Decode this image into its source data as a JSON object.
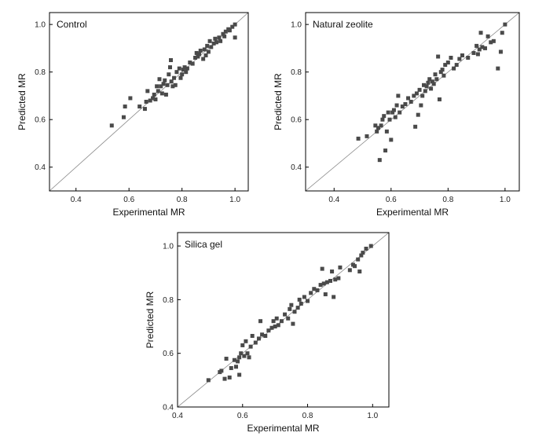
{
  "chart_data": [
    {
      "type": "scatter",
      "title": "Control",
      "xlabel": "Experimental MR",
      "ylabel": "Predicted MR",
      "xlim": [
        0.3,
        1.05
      ],
      "ylim": [
        0.3,
        1.05
      ],
      "xticks": [
        "0.4",
        "0.6",
        "0.8",
        "1.0"
      ],
      "yticks": [
        "0.4",
        "0.6",
        "0.8",
        "1.0"
      ],
      "reference_line": "y = x",
      "marker_color": "#4a4a4a",
      "points": [
        [
          0.535,
          0.575
        ],
        [
          0.58,
          0.61
        ],
        [
          0.585,
          0.655
        ],
        [
          0.605,
          0.69
        ],
        [
          0.64,
          0.655
        ],
        [
          0.66,
          0.645
        ],
        [
          0.665,
          0.675
        ],
        [
          0.67,
          0.72
        ],
        [
          0.68,
          0.68
        ],
        [
          0.69,
          0.69
        ],
        [
          0.695,
          0.705
        ],
        [
          0.7,
          0.685
        ],
        [
          0.705,
          0.74
        ],
        [
          0.71,
          0.72
        ],
        [
          0.715,
          0.77
        ],
        [
          0.72,
          0.74
        ],
        [
          0.725,
          0.71
        ],
        [
          0.73,
          0.75
        ],
        [
          0.735,
          0.765
        ],
        [
          0.74,
          0.705
        ],
        [
          0.745,
          0.745
        ],
        [
          0.75,
          0.79
        ],
        [
          0.755,
          0.82
        ],
        [
          0.758,
          0.85
        ],
        [
          0.76,
          0.76
        ],
        [
          0.765,
          0.74
        ],
        [
          0.77,
          0.775
        ],
        [
          0.775,
          0.745
        ],
        [
          0.78,
          0.8
        ],
        [
          0.79,
          0.815
        ],
        [
          0.795,
          0.775
        ],
        [
          0.8,
          0.79
        ],
        [
          0.805,
          0.81
        ],
        [
          0.81,
          0.82
        ],
        [
          0.815,
          0.8
        ],
        [
          0.82,
          0.815
        ],
        [
          0.83,
          0.84
        ],
        [
          0.84,
          0.835
        ],
        [
          0.85,
          0.86
        ],
        [
          0.855,
          0.88
        ],
        [
          0.86,
          0.865
        ],
        [
          0.865,
          0.875
        ],
        [
          0.87,
          0.89
        ],
        [
          0.88,
          0.855
        ],
        [
          0.885,
          0.895
        ],
        [
          0.89,
          0.87
        ],
        [
          0.895,
          0.91
        ],
        [
          0.9,
          0.885
        ],
        [
          0.905,
          0.93
        ],
        [
          0.91,
          0.905
        ],
        [
          0.92,
          0.92
        ],
        [
          0.925,
          0.94
        ],
        [
          0.93,
          0.925
        ],
        [
          0.94,
          0.945
        ],
        [
          0.945,
          0.93
        ],
        [
          0.955,
          0.96
        ],
        [
          0.96,
          0.95
        ],
        [
          0.965,
          0.97
        ],
        [
          0.975,
          0.98
        ],
        [
          0.98,
          0.975
        ],
        [
          0.99,
          0.99
        ],
        [
          1.0,
          1.0
        ],
        [
          1.0,
          0.945
        ]
      ]
    },
    {
      "type": "scatter",
      "title": "Natural zeolite",
      "xlabel": "Experimental MR",
      "ylabel": "Predicted MR",
      "xlim": [
        0.3,
        1.05
      ],
      "ylim": [
        0.3,
        1.05
      ],
      "xticks": [
        "0.4",
        "0.6",
        "0.8",
        "1.0"
      ],
      "yticks": [
        "0.4",
        "0.6",
        "0.8",
        "1.0"
      ],
      "reference_line": "y = x",
      "marker_color": "#4a4a4a",
      "points": [
        [
          0.485,
          0.52
        ],
        [
          0.515,
          0.53
        ],
        [
          0.545,
          0.575
        ],
        [
          0.55,
          0.55
        ],
        [
          0.555,
          0.565
        ],
        [
          0.56,
          0.43
        ],
        [
          0.565,
          0.575
        ],
        [
          0.57,
          0.6
        ],
        [
          0.575,
          0.615
        ],
        [
          0.58,
          0.47
        ],
        [
          0.585,
          0.55
        ],
        [
          0.59,
          0.63
        ],
        [
          0.595,
          0.6
        ],
        [
          0.6,
          0.515
        ],
        [
          0.605,
          0.63
        ],
        [
          0.61,
          0.64
        ],
        [
          0.615,
          0.61
        ],
        [
          0.62,
          0.66
        ],
        [
          0.625,
          0.7
        ],
        [
          0.63,
          0.63
        ],
        [
          0.64,
          0.655
        ],
        [
          0.65,
          0.665
        ],
        [
          0.66,
          0.69
        ],
        [
          0.67,
          0.675
        ],
        [
          0.68,
          0.7
        ],
        [
          0.685,
          0.57
        ],
        [
          0.69,
          0.71
        ],
        [
          0.695,
          0.62
        ],
        [
          0.7,
          0.725
        ],
        [
          0.705,
          0.66
        ],
        [
          0.71,
          0.7
        ],
        [
          0.715,
          0.745
        ],
        [
          0.72,
          0.72
        ],
        [
          0.725,
          0.74
        ],
        [
          0.73,
          0.755
        ],
        [
          0.735,
          0.77
        ],
        [
          0.74,
          0.73
        ],
        [
          0.745,
          0.76
        ],
        [
          0.75,
          0.75
        ],
        [
          0.755,
          0.79
        ],
        [
          0.76,
          0.77
        ],
        [
          0.765,
          0.865
        ],
        [
          0.77,
          0.685
        ],
        [
          0.775,
          0.8
        ],
        [
          0.78,
          0.81
        ],
        [
          0.785,
          0.785
        ],
        [
          0.79,
          0.83
        ],
        [
          0.8,
          0.84
        ],
        [
          0.81,
          0.86
        ],
        [
          0.82,
          0.815
        ],
        [
          0.83,
          0.83
        ],
        [
          0.84,
          0.855
        ],
        [
          0.85,
          0.87
        ],
        [
          0.87,
          0.86
        ],
        [
          0.89,
          0.88
        ],
        [
          0.9,
          0.91
        ],
        [
          0.905,
          0.875
        ],
        [
          0.91,
          0.895
        ],
        [
          0.915,
          0.965
        ],
        [
          0.92,
          0.905
        ],
        [
          0.93,
          0.9
        ],
        [
          0.94,
          0.95
        ],
        [
          0.95,
          0.925
        ],
        [
          0.96,
          0.93
        ],
        [
          0.975,
          0.815
        ],
        [
          0.985,
          0.885
        ],
        [
          0.99,
          0.965
        ],
        [
          1.0,
          1.0
        ]
      ]
    },
    {
      "type": "scatter",
      "title": "Silica gel",
      "xlabel": "Experimental MR",
      "ylabel": "Predicted MR",
      "xlim": [
        0.4,
        1.05
      ],
      "ylim": [
        0.4,
        1.05
      ],
      "xticks": [
        "0.4",
        "0.6",
        "0.8",
        "1.0"
      ],
      "yticks": [
        "0.4",
        "0.6",
        "0.8",
        "1.0"
      ],
      "reference_line": "y = x",
      "marker_color": "#4a4a4a",
      "points": [
        [
          0.495,
          0.5
        ],
        [
          0.53,
          0.53
        ],
        [
          0.535,
          0.535
        ],
        [
          0.545,
          0.505
        ],
        [
          0.55,
          0.58
        ],
        [
          0.56,
          0.51
        ],
        [
          0.565,
          0.545
        ],
        [
          0.575,
          0.575
        ],
        [
          0.58,
          0.55
        ],
        [
          0.585,
          0.57
        ],
        [
          0.59,
          0.585
        ],
        [
          0.59,
          0.52
        ],
        [
          0.595,
          0.6
        ],
        [
          0.6,
          0.63
        ],
        [
          0.605,
          0.59
        ],
        [
          0.61,
          0.645
        ],
        [
          0.615,
          0.6
        ],
        [
          0.62,
          0.585
        ],
        [
          0.625,
          0.625
        ],
        [
          0.63,
          0.665
        ],
        [
          0.64,
          0.64
        ],
        [
          0.65,
          0.655
        ],
        [
          0.655,
          0.72
        ],
        [
          0.66,
          0.67
        ],
        [
          0.67,
          0.665
        ],
        [
          0.68,
          0.685
        ],
        [
          0.69,
          0.695
        ],
        [
          0.695,
          0.72
        ],
        [
          0.7,
          0.7
        ],
        [
          0.705,
          0.73
        ],
        [
          0.71,
          0.705
        ],
        [
          0.72,
          0.72
        ],
        [
          0.73,
          0.745
        ],
        [
          0.74,
          0.73
        ],
        [
          0.745,
          0.765
        ],
        [
          0.75,
          0.78
        ],
        [
          0.755,
          0.71
        ],
        [
          0.76,
          0.755
        ],
        [
          0.77,
          0.77
        ],
        [
          0.775,
          0.8
        ],
        [
          0.78,
          0.785
        ],
        [
          0.79,
          0.81
        ],
        [
          0.8,
          0.795
        ],
        [
          0.81,
          0.825
        ],
        [
          0.82,
          0.84
        ],
        [
          0.83,
          0.835
        ],
        [
          0.84,
          0.855
        ],
        [
          0.845,
          0.915
        ],
        [
          0.85,
          0.86
        ],
        [
          0.855,
          0.82
        ],
        [
          0.86,
          0.865
        ],
        [
          0.87,
          0.87
        ],
        [
          0.875,
          0.905
        ],
        [
          0.88,
          0.81
        ],
        [
          0.885,
          0.875
        ],
        [
          0.895,
          0.88
        ],
        [
          0.9,
          0.92
        ],
        [
          0.93,
          0.91
        ],
        [
          0.94,
          0.93
        ],
        [
          0.945,
          0.925
        ],
        [
          0.955,
          0.95
        ],
        [
          0.96,
          0.905
        ],
        [
          0.965,
          0.965
        ],
        [
          0.97,
          0.975
        ],
        [
          0.98,
          0.99
        ],
        [
          0.995,
          1.0
        ]
      ]
    }
  ]
}
